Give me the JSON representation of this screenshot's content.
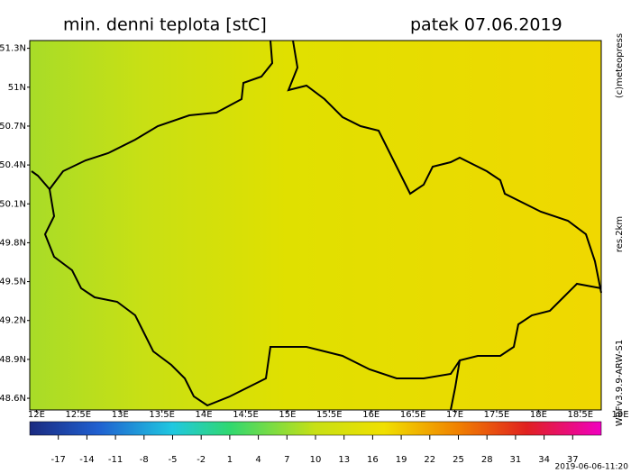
{
  "header": {
    "title": "min. denni teplota [stC]",
    "date": "patek 07.06.2019"
  },
  "map": {
    "lat_range": [
      48.51,
      51.36
    ],
    "lat_ticks": [
      {
        "value": 51.3,
        "label": "51.3N"
      },
      {
        "value": 51.0,
        "label": "51N"
      },
      {
        "value": 50.7,
        "label": "50.7N"
      },
      {
        "value": 50.4,
        "label": "50.4N"
      },
      {
        "value": 50.1,
        "label": "50.1N"
      },
      {
        "value": 49.8,
        "label": "49.8N"
      },
      {
        "value": 49.5,
        "label": "49.5N"
      },
      {
        "value": 49.2,
        "label": "49.2N"
      },
      {
        "value": 48.9,
        "label": "48.9N"
      },
      {
        "value": 48.6,
        "label": "48.6N"
      }
    ],
    "lon_range": [
      11.92,
      18.75
    ],
    "lon_ticks": [
      {
        "value": 12,
        "label": "12E"
      },
      {
        "value": 12.5,
        "label": "12.5E"
      },
      {
        "value": 13,
        "label": "13E"
      },
      {
        "value": 13.5,
        "label": "13.5E"
      },
      {
        "value": 14,
        "label": "14E"
      },
      {
        "value": 14.5,
        "label": "14.5E"
      },
      {
        "value": 15,
        "label": "15E"
      },
      {
        "value": 15.5,
        "label": "15.5E"
      },
      {
        "value": 16,
        "label": "16E"
      },
      {
        "value": 16.5,
        "label": "16.5E"
      },
      {
        "value": 17,
        "label": "17E"
      },
      {
        "value": 17.5,
        "label": "17.5E"
      },
      {
        "value": 18,
        "label": "18E"
      },
      {
        "value": 18.5,
        "label": "18.5E"
      },
      {
        "value": 19,
        "label": "19E"
      }
    ]
  },
  "colorbar": {
    "range": [
      -20,
      40
    ],
    "ticks": [
      -17,
      -14,
      -11,
      -8,
      -5,
      -2,
      1,
      4,
      7,
      10,
      13,
      16,
      19,
      22,
      25,
      28,
      31,
      34,
      37
    ]
  },
  "side": {
    "copyright": "(c)meteopress",
    "resolution": "res.2km",
    "model": "WRFv3.9.9-ARW-S1",
    "timestamp": "2019-06-06-11:20"
  }
}
